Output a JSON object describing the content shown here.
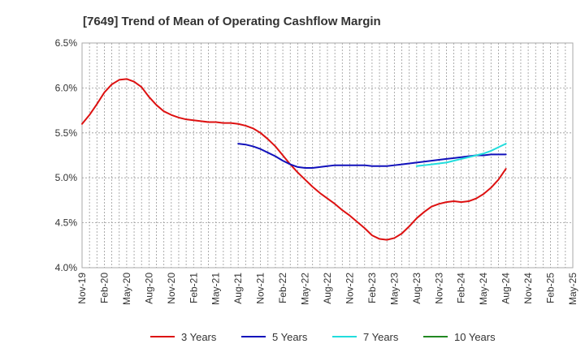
{
  "chart_data": {
    "type": "line",
    "title": "[7649]  Trend of Mean of Operating Cashflow Margin",
    "xlabel": "",
    "ylabel": "",
    "ylim": [
      4.0,
      6.5
    ],
    "y_ticks": [
      "4.0%",
      "4.5%",
      "5.0%",
      "5.5%",
      "6.0%",
      "6.5%"
    ],
    "y_tick_values": [
      4.0,
      4.5,
      5.0,
      5.5,
      6.0,
      6.5
    ],
    "x_ticks": [
      "Nov-19",
      "Feb-20",
      "May-20",
      "Aug-20",
      "Nov-20",
      "Feb-21",
      "May-21",
      "Aug-21",
      "Nov-21",
      "Feb-22",
      "May-22",
      "Aug-22",
      "Nov-22",
      "Feb-23",
      "May-23",
      "Aug-23",
      "Nov-23",
      "Feb-24",
      "May-24",
      "Aug-24",
      "Nov-24",
      "Feb-25",
      "May-25"
    ],
    "x_range_months": [
      "Nov-19",
      "May-25"
    ],
    "grid": true,
    "legend_position": "bottom",
    "series": [
      {
        "name": "3 Years",
        "color": "#dd1111",
        "points": [
          [
            "Nov-19",
            5.6
          ],
          [
            "Dec-19",
            5.7
          ],
          [
            "Jan-20",
            5.82
          ],
          [
            "Feb-20",
            5.95
          ],
          [
            "Mar-20",
            6.04
          ],
          [
            "Apr-20",
            6.09
          ],
          [
            "May-20",
            6.1
          ],
          [
            "Jun-20",
            6.07
          ],
          [
            "Jul-20",
            6.01
          ],
          [
            "Aug-20",
            5.9
          ],
          [
            "Sep-20",
            5.81
          ],
          [
            "Oct-20",
            5.74
          ],
          [
            "Nov-20",
            5.7
          ],
          [
            "Dec-20",
            5.67
          ],
          [
            "Jan-21",
            5.65
          ],
          [
            "Feb-21",
            5.64
          ],
          [
            "Mar-21",
            5.63
          ],
          [
            "Apr-21",
            5.62
          ],
          [
            "May-21",
            5.62
          ],
          [
            "Jun-21",
            5.61
          ],
          [
            "Jul-21",
            5.61
          ],
          [
            "Aug-21",
            5.6
          ],
          [
            "Sep-21",
            5.58
          ],
          [
            "Oct-21",
            5.55
          ],
          [
            "Nov-21",
            5.5
          ],
          [
            "Dec-21",
            5.43
          ],
          [
            "Jan-22",
            5.35
          ],
          [
            "Feb-22",
            5.25
          ],
          [
            "Mar-22",
            5.15
          ],
          [
            "Apr-22",
            5.06
          ],
          [
            "May-22",
            4.98
          ],
          [
            "Jun-22",
            4.9
          ],
          [
            "Jul-22",
            4.83
          ],
          [
            "Aug-22",
            4.77
          ],
          [
            "Sep-22",
            4.71
          ],
          [
            "Oct-22",
            4.64
          ],
          [
            "Nov-22",
            4.58
          ],
          [
            "Dec-22",
            4.51
          ],
          [
            "Jan-23",
            4.44
          ],
          [
            "Feb-23",
            4.36
          ],
          [
            "Mar-23",
            4.32
          ],
          [
            "Apr-23",
            4.31
          ],
          [
            "May-23",
            4.33
          ],
          [
            "Jun-23",
            4.38
          ],
          [
            "Jul-23",
            4.46
          ],
          [
            "Aug-23",
            4.55
          ],
          [
            "Sep-23",
            4.62
          ],
          [
            "Oct-23",
            4.68
          ],
          [
            "Nov-23",
            4.71
          ],
          [
            "Dec-23",
            4.73
          ],
          [
            "Jan-24",
            4.74
          ],
          [
            "Feb-24",
            4.73
          ],
          [
            "Mar-24",
            4.74
          ],
          [
            "Apr-24",
            4.77
          ],
          [
            "May-24",
            4.82
          ],
          [
            "Jun-24",
            4.89
          ],
          [
            "Jul-24",
            4.98
          ],
          [
            "Aug-24",
            5.1
          ]
        ]
      },
      {
        "name": "5 Years",
        "color": "#1111bb",
        "points": [
          [
            "Aug-21",
            5.38
          ],
          [
            "Sep-21",
            5.37
          ],
          [
            "Oct-21",
            5.35
          ],
          [
            "Nov-21",
            5.32
          ],
          [
            "Dec-21",
            5.28
          ],
          [
            "Jan-22",
            5.24
          ],
          [
            "Feb-22",
            5.19
          ],
          [
            "Mar-22",
            5.15
          ],
          [
            "Apr-22",
            5.12
          ],
          [
            "May-22",
            5.11
          ],
          [
            "Jun-22",
            5.11
          ],
          [
            "Jul-22",
            5.12
          ],
          [
            "Aug-22",
            5.13
          ],
          [
            "Sep-22",
            5.14
          ],
          [
            "Oct-22",
            5.14
          ],
          [
            "Nov-22",
            5.14
          ],
          [
            "Dec-22",
            5.14
          ],
          [
            "Jan-23",
            5.14
          ],
          [
            "Feb-23",
            5.13
          ],
          [
            "Mar-23",
            5.13
          ],
          [
            "Apr-23",
            5.13
          ],
          [
            "May-23",
            5.14
          ],
          [
            "Jun-23",
            5.15
          ],
          [
            "Jul-23",
            5.16
          ],
          [
            "Aug-23",
            5.17
          ],
          [
            "Sep-23",
            5.18
          ],
          [
            "Oct-23",
            5.19
          ],
          [
            "Nov-23",
            5.2
          ],
          [
            "Dec-23",
            5.21
          ],
          [
            "Jan-24",
            5.22
          ],
          [
            "Feb-24",
            5.23
          ],
          [
            "Mar-24",
            5.24
          ],
          [
            "Apr-24",
            5.25
          ],
          [
            "May-24",
            5.25
          ],
          [
            "Jun-24",
            5.26
          ],
          [
            "Jul-24",
            5.26
          ],
          [
            "Aug-24",
            5.26
          ]
        ]
      },
      {
        "name": "7 Years",
        "color": "#22dddd",
        "points": [
          [
            "Aug-23",
            5.13
          ],
          [
            "Sep-23",
            5.14
          ],
          [
            "Oct-23",
            5.15
          ],
          [
            "Nov-23",
            5.16
          ],
          [
            "Dec-23",
            5.17
          ],
          [
            "Jan-24",
            5.19
          ],
          [
            "Feb-24",
            5.21
          ],
          [
            "Mar-24",
            5.23
          ],
          [
            "Apr-24",
            5.25
          ],
          [
            "May-24",
            5.27
          ],
          [
            "Jun-24",
            5.3
          ],
          [
            "Jul-24",
            5.34
          ],
          [
            "Aug-24",
            5.38
          ]
        ]
      },
      {
        "name": "10 Years",
        "color": "#228822",
        "points": []
      }
    ]
  }
}
